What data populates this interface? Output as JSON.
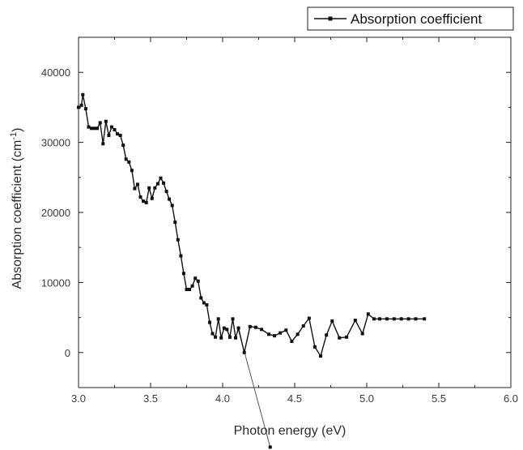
{
  "chart_data": {
    "type": "line",
    "xlabel": "Photon energy (eV)",
    "ylabel_main": "Absorption coefficient (cm",
    "ylabel_sup": "-1",
    "ylabel_close": ")",
    "xlim": [
      3.0,
      6.0
    ],
    "ylim": [
      -5000,
      45000
    ],
    "x_ticks": [
      "3.0",
      "3.5",
      "4.0",
      "4.5",
      "5.0",
      "5.5",
      "6.0"
    ],
    "y_ticks": [
      "0",
      "10000",
      "20000",
      "30000",
      "40000"
    ],
    "grid": false,
    "legend": {
      "position": "top-right"
    },
    "series": [
      {
        "name": "Absorption coefficient",
        "color": "#111111",
        "marker": "square",
        "x": [
          3.0,
          3.02,
          3.03,
          3.05,
          3.07,
          3.09,
          3.11,
          3.13,
          3.15,
          3.17,
          3.19,
          3.21,
          3.23,
          3.25,
          3.27,
          3.29,
          3.31,
          3.33,
          3.35,
          3.37,
          3.39,
          3.41,
          3.43,
          3.45,
          3.47,
          3.49,
          3.51,
          3.53,
          3.55,
          3.57,
          3.59,
          3.61,
          3.63,
          3.65,
          3.67,
          3.69,
          3.71,
          3.73,
          3.75,
          3.77,
          3.79,
          3.81,
          3.83,
          3.85,
          3.87,
          3.89,
          3.91,
          3.93,
          3.95,
          3.97,
          3.99,
          4.01,
          4.03,
          4.05,
          4.07,
          4.09,
          4.11,
          4.15,
          4.19,
          4.23,
          4.27,
          4.32,
          4.36,
          4.4,
          4.44,
          4.48,
          4.52,
          4.56,
          4.6,
          4.64,
          4.68,
          4.72,
          4.76,
          4.81,
          4.86,
          4.92,
          4.97,
          5.01,
          5.05,
          5.09,
          5.14,
          5.19,
          5.24,
          5.29,
          5.34,
          5.4
        ],
        "y": [
          35000,
          35300,
          36800,
          34800,
          32200,
          32000,
          32000,
          32000,
          32800,
          29800,
          33000,
          31000,
          32200,
          31800,
          31200,
          31000,
          29600,
          27600,
          27200,
          26000,
          23400,
          24000,
          22200,
          21600,
          21400,
          23500,
          22000,
          23500,
          24100,
          24900,
          24200,
          23000,
          21900,
          21000,
          18600,
          16100,
          13800,
          11300,
          9000,
          9000,
          9500,
          10600,
          10200,
          7800,
          7100,
          6800,
          4300,
          2700,
          2200,
          4800,
          2100,
          3500,
          3300,
          2200,
          4800,
          2100,
          3500,
          0,
          3700,
          3600,
          3300,
          2600,
          2400,
          2800,
          3200,
          1600,
          2600,
          3800,
          4900,
          800,
          -500,
          2500,
          4500,
          2100,
          2200,
          4600,
          2700,
          5500,
          4800,
          4800,
          4800,
          4800,
          4800,
          4800,
          4800,
          4800
        ]
      }
    ],
    "fit_line": {
      "x": [
        4.11,
        4.33
      ],
      "y": [
        3200,
        -13500
      ]
    }
  }
}
